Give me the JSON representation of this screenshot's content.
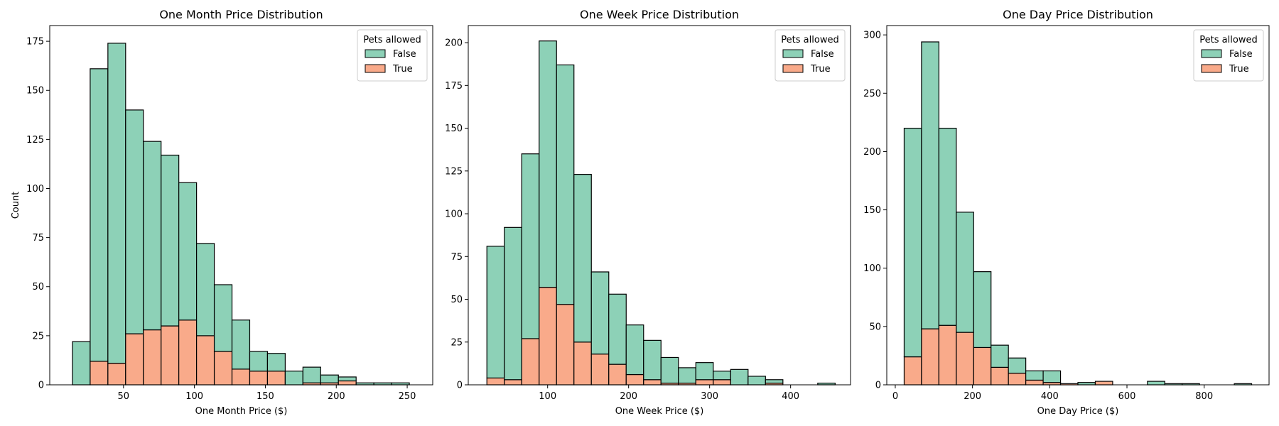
{
  "figure": {
    "background": "#ffffff"
  },
  "colors": {
    "false": "#8dd1b7",
    "true": "#f9aa8a",
    "edge": "#000000"
  },
  "chart_data": [
    {
      "type": "bar",
      "stacked": true,
      "title": "One Month Price Distribution",
      "xlabel": "One Month Price ($)",
      "ylabel": "Count",
      "xlim": [
        -2,
        268
      ],
      "ylim": [
        0,
        183
      ],
      "xticks": [
        50,
        100,
        150,
        200,
        250
      ],
      "yticks": [
        0,
        25,
        50,
        75,
        100,
        125,
        150,
        175
      ],
      "legend": {
        "title": "Pets allowed",
        "entries": [
          "False",
          "True"
        ],
        "placement": "top-right"
      },
      "bin_start": 14,
      "bin_width": 12.5,
      "series": [
        {
          "name": "True",
          "values": [
            0,
            12,
            11,
            26,
            28,
            30,
            33,
            25,
            17,
            8,
            7,
            7,
            0,
            1,
            1,
            2,
            0,
            0,
            0
          ]
        },
        {
          "name": "False",
          "values": [
            22,
            149,
            163,
            114,
            96,
            87,
            70,
            47,
            34,
            25,
            10,
            9,
            7,
            8,
            4,
            2,
            1,
            1,
            1
          ]
        }
      ]
    },
    {
      "type": "bar",
      "stacked": true,
      "title": "One Week Price Distribution",
      "xlabel": "One Week Price ($)",
      "ylabel": "",
      "xlim": [
        2,
        474
      ],
      "ylim": [
        0,
        210
      ],
      "xticks": [
        100,
        200,
        300,
        400
      ],
      "yticks": [
        0,
        25,
        50,
        75,
        100,
        125,
        150,
        175,
        200
      ],
      "legend": {
        "title": "Pets allowed",
        "entries": [
          "False",
          "True"
        ],
        "placement": "top-right"
      },
      "bin_start": 25,
      "bin_width": 21.5,
      "series": [
        {
          "name": "True",
          "values": [
            4,
            3,
            27,
            57,
            47,
            25,
            18,
            12,
            6,
            3,
            1,
            1,
            3,
            3,
            0,
            0,
            1,
            0,
            0,
            0
          ]
        },
        {
          "name": "False",
          "values": [
            77,
            89,
            108,
            144,
            140,
            98,
            48,
            41,
            29,
            23,
            15,
            9,
            10,
            5,
            9,
            5,
            2,
            0,
            0,
            1
          ]
        }
      ]
    },
    {
      "type": "bar",
      "stacked": true,
      "title": "One Day Price Distribution",
      "xlabel": "One Day Price ($)",
      "ylabel": "",
      "xlim": [
        -22,
        968
      ],
      "ylim": [
        0,
        308
      ],
      "xticks": [
        0,
        200,
        400,
        600,
        800
      ],
      "yticks": [
        0,
        50,
        100,
        150,
        200,
        250,
        300
      ],
      "legend": {
        "title": "Pets allowed",
        "entries": [
          "False",
          "True"
        ],
        "placement": "top-right"
      },
      "bin_start": 23,
      "bin_width": 45,
      "series": [
        {
          "name": "True",
          "values": [
            24,
            48,
            51,
            45,
            32,
            15,
            10,
            4,
            2,
            1,
            0,
            3,
            0,
            0,
            0,
            0,
            0,
            0,
            0,
            0
          ]
        },
        {
          "name": "False",
          "values": [
            196,
            246,
            169,
            103,
            65,
            19,
            13,
            8,
            10,
            0,
            2,
            0,
            0,
            0,
            3,
            1,
            1,
            0,
            0,
            1
          ]
        }
      ]
    }
  ]
}
